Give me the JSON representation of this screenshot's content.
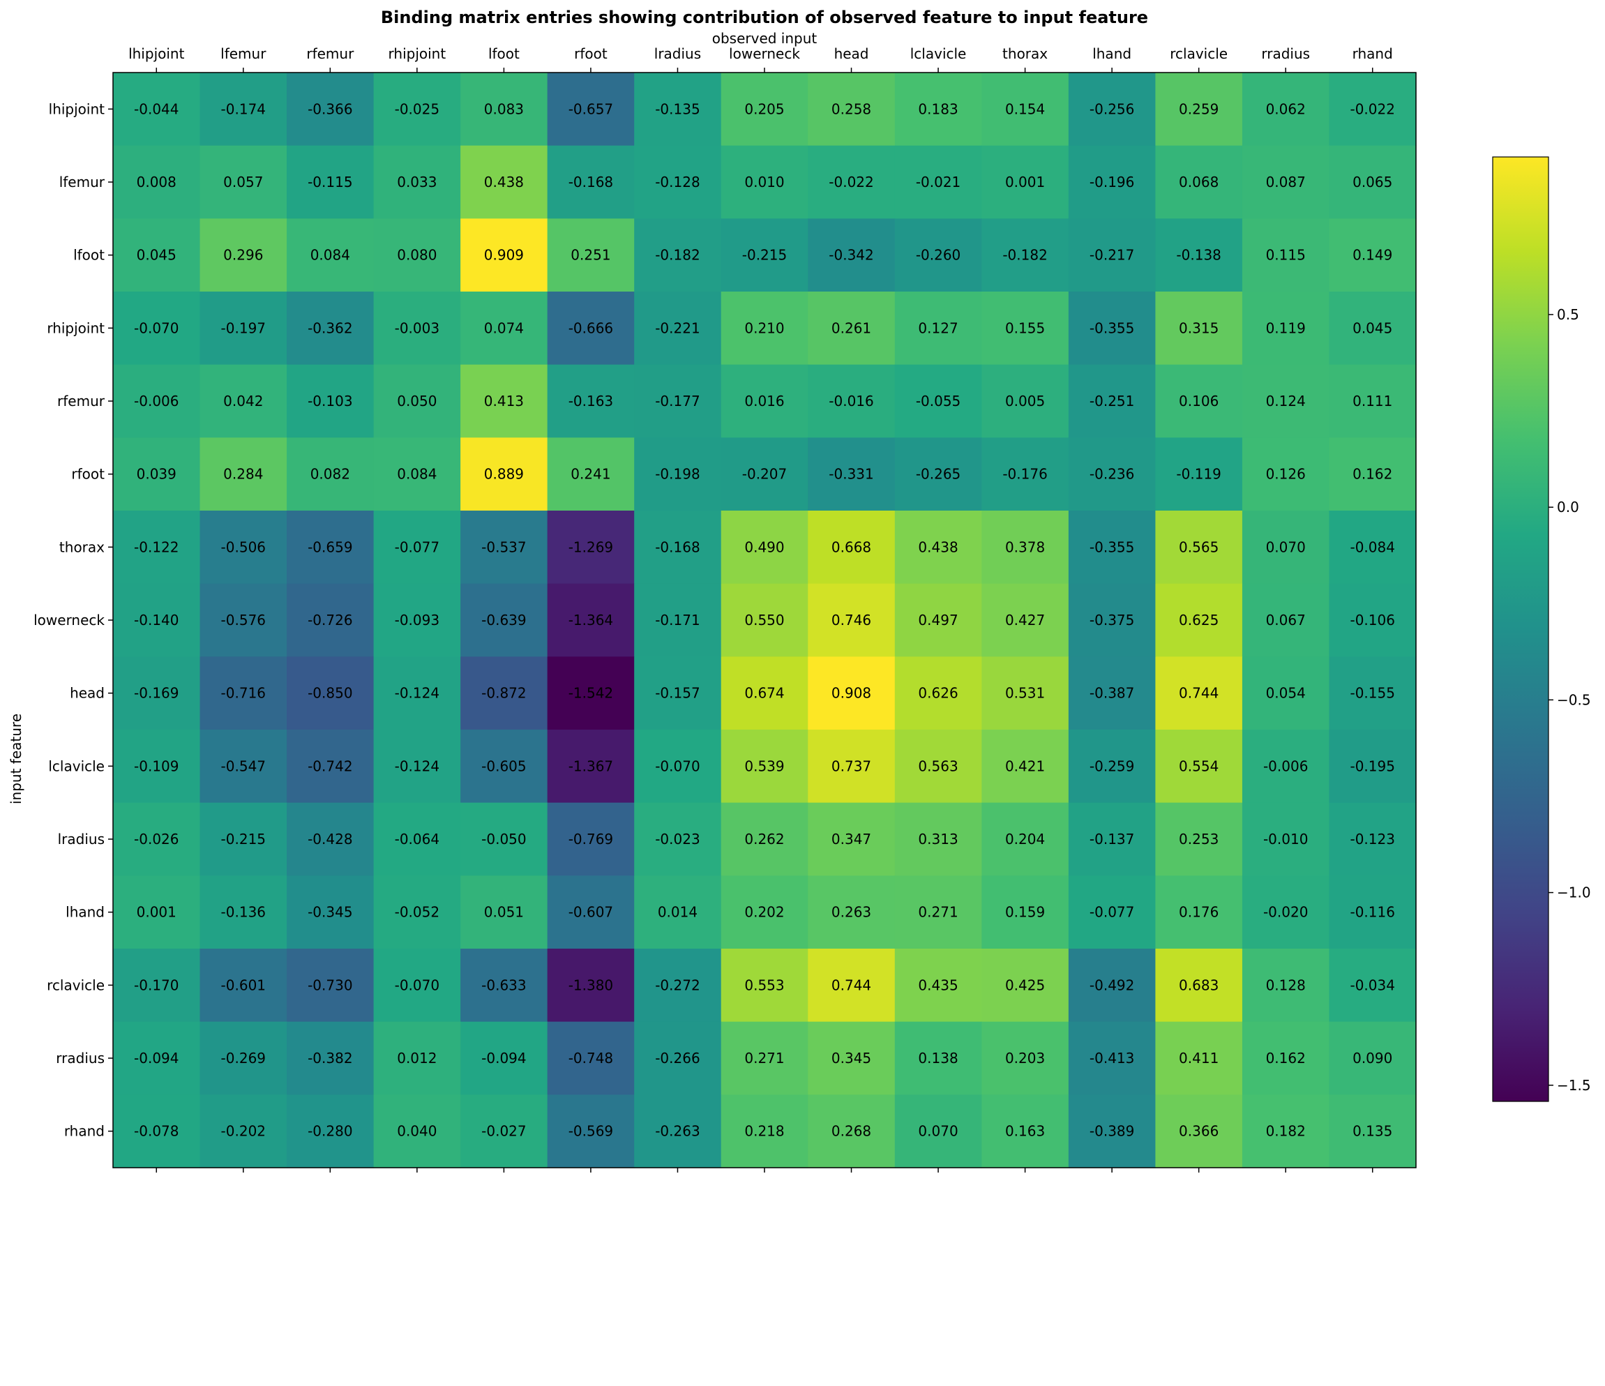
{
  "chart_data": {
    "type": "heatmap",
    "title": "Binding matrix entries showing contribution of observed feature to input feature",
    "xlabel": "observed input",
    "ylabel": "input feature",
    "x_categories": [
      "lhipjoint",
      "lfemur",
      "rfemur",
      "rhipjoint",
      "lfoot",
      "rfoot",
      "lradius",
      "lowerneck",
      "head",
      "lclavicle",
      "thorax",
      "lhand",
      "rclavicle",
      "rradius",
      "rhand"
    ],
    "y_categories": [
      "lhipjoint",
      "lfemur",
      "lfoot",
      "rhipjoint",
      "rfemur",
      "rfoot",
      "thorax",
      "lowerneck",
      "head",
      "lclavicle",
      "lradius",
      "lhand",
      "rclavicle",
      "rradius",
      "rhand"
    ],
    "values": [
      [
        -0.044,
        -0.174,
        -0.366,
        -0.025,
        0.083,
        -0.657,
        -0.135,
        0.205,
        0.258,
        0.183,
        0.154,
        -0.256,
        0.259,
        0.062,
        -0.022
      ],
      [
        0.008,
        0.057,
        -0.115,
        0.033,
        0.438,
        -0.168,
        -0.128,
        0.01,
        -0.022,
        -0.021,
        0.001,
        -0.196,
        0.068,
        0.087,
        0.065
      ],
      [
        0.045,
        0.296,
        0.084,
        0.08,
        0.909,
        0.251,
        -0.182,
        -0.215,
        -0.342,
        -0.26,
        -0.182,
        -0.217,
        -0.138,
        0.115,
        0.149
      ],
      [
        -0.07,
        -0.197,
        -0.362,
        -0.003,
        0.074,
        -0.666,
        -0.221,
        0.21,
        0.261,
        0.127,
        0.155,
        -0.355,
        0.315,
        0.119,
        0.045
      ],
      [
        -0.006,
        0.042,
        -0.103,
        0.05,
        0.413,
        -0.163,
        -0.177,
        0.016,
        -0.016,
        -0.055,
        0.005,
        -0.251,
        0.106,
        0.124,
        0.111
      ],
      [
        0.039,
        0.284,
        0.082,
        0.084,
        0.889,
        0.241,
        -0.198,
        -0.207,
        -0.331,
        -0.265,
        -0.176,
        -0.236,
        -0.119,
        0.126,
        0.162
      ],
      [
        -0.122,
        -0.506,
        -0.659,
        -0.077,
        -0.537,
        -1.269,
        -0.168,
        0.49,
        0.668,
        0.438,
        0.378,
        -0.355,
        0.565,
        0.07,
        -0.084
      ],
      [
        -0.14,
        -0.576,
        -0.726,
        -0.093,
        -0.639,
        -1.364,
        -0.171,
        0.55,
        0.746,
        0.497,
        0.427,
        -0.375,
        0.625,
        0.067,
        -0.106
      ],
      [
        -0.169,
        -0.716,
        -0.85,
        -0.124,
        -0.872,
        -1.542,
        -0.157,
        0.674,
        0.908,
        0.626,
        0.531,
        -0.387,
        0.744,
        0.054,
        -0.155
      ],
      [
        -0.109,
        -0.547,
        -0.742,
        -0.124,
        -0.605,
        -1.367,
        -0.07,
        0.539,
        0.737,
        0.563,
        0.421,
        -0.259,
        0.554,
        -0.006,
        -0.195
      ],
      [
        -0.026,
        -0.215,
        -0.428,
        -0.064,
        -0.05,
        -0.769,
        -0.023,
        0.262,
        0.347,
        0.313,
        0.204,
        -0.137,
        0.253,
        -0.01,
        -0.123
      ],
      [
        0.001,
        -0.136,
        -0.345,
        -0.052,
        0.051,
        -0.607,
        0.014,
        0.202,
        0.263,
        0.271,
        0.159,
        -0.077,
        0.176,
        -0.02,
        -0.116
      ],
      [
        -0.17,
        -0.601,
        -0.73,
        -0.07,
        -0.633,
        -1.38,
        -0.272,
        0.553,
        0.744,
        0.435,
        0.425,
        -0.492,
        0.683,
        0.128,
        -0.034
      ],
      [
        -0.094,
        -0.269,
        -0.382,
        0.012,
        -0.094,
        -0.748,
        -0.266,
        0.271,
        0.345,
        0.138,
        0.203,
        -0.413,
        0.411,
        0.162,
        0.09
      ],
      [
        -0.078,
        -0.202,
        -0.28,
        0.04,
        -0.027,
        -0.569,
        -0.263,
        0.218,
        0.268,
        0.07,
        0.163,
        -0.389,
        0.366,
        0.182,
        0.135
      ]
    ],
    "colormap": "viridis",
    "vmin": -1.542,
    "vmax": 0.909,
    "colorbar_ticks": [
      0.5,
      0.0,
      -0.5,
      -1.0,
      -1.5
    ],
    "colorbar_tick_labels": [
      "0.5",
      "0.0",
      "−0.5",
      "−1.0",
      "−1.5"
    ],
    "x_axis_position": "top",
    "grid": false
  }
}
